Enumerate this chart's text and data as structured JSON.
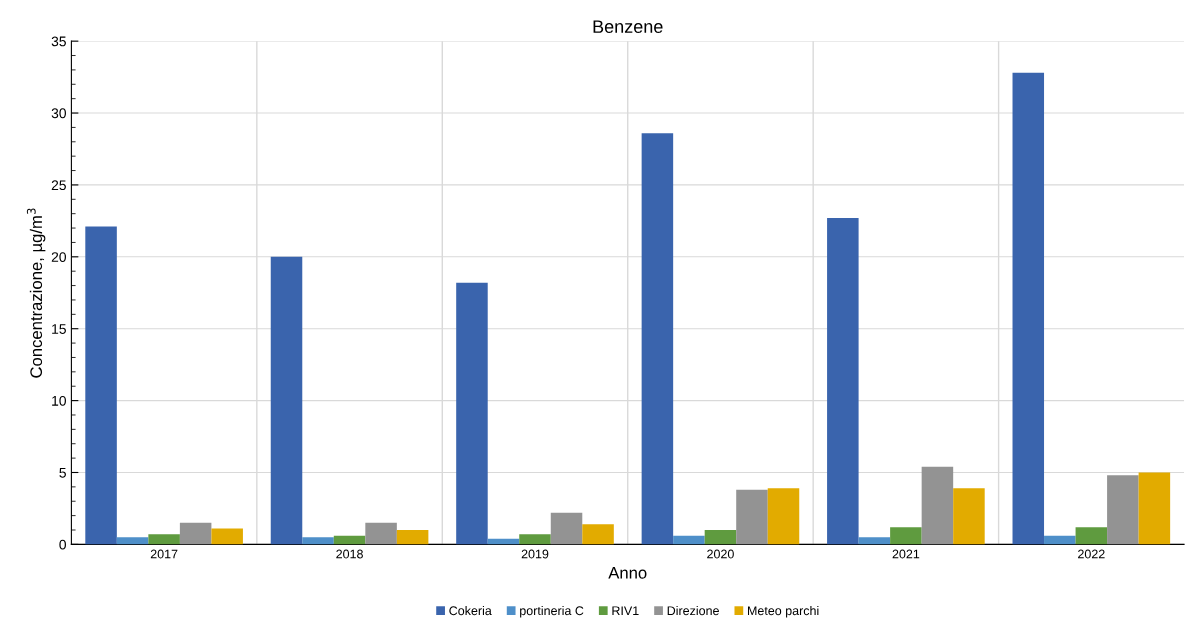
{
  "chart_data": {
    "type": "bar",
    "title": "Benzene",
    "xlabel": "Anno",
    "ylabel": "Concentrazione, µg/m$^{3}$",
    "categories": [
      "2017",
      "2018",
      "2019",
      "2020",
      "2021",
      "2022"
    ],
    "series": [
      {
        "name": "Cokeria",
        "color": "#3a64ad",
        "values": [
          22.1,
          20.0,
          18.2,
          28.6,
          22.7,
          32.8
        ]
      },
      {
        "name": "portineria C",
        "color": "#4e8fc9",
        "values": [
          0.5,
          0.5,
          0.4,
          0.6,
          0.5,
          0.6
        ]
      },
      {
        "name": "RIV1",
        "color": "#5f9b3f",
        "values": [
          0.7,
          0.6,
          0.7,
          1.0,
          1.2,
          1.2
        ]
      },
      {
        "name": "Direzione",
        "color": "#939393",
        "values": [
          1.5,
          1.5,
          2.2,
          3.8,
          5.4,
          4.8
        ]
      },
      {
        "name": "Meteo parchi",
        "color": "#e2ab00",
        "values": [
          1.1,
          1.0,
          1.4,
          3.9,
          3.9,
          5.0
        ]
      }
    ],
    "ylim": [
      0,
      35
    ],
    "yticks": [
      0,
      5,
      10,
      15,
      20,
      25,
      30,
      35
    ],
    "grid": true,
    "legend": "bottom"
  }
}
